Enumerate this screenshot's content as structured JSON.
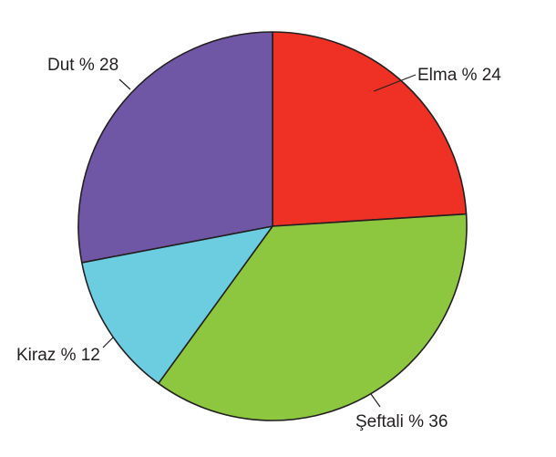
{
  "chart_data": {
    "type": "pie",
    "title": "",
    "slices": [
      {
        "name": "Elma",
        "label": "Elma % 24",
        "value": 24,
        "color": "#ee3124"
      },
      {
        "name": "Şeftali",
        "label": "Şeftali % 36",
        "value": 36,
        "color": "#8dc63f"
      },
      {
        "name": "Kiraz",
        "label": "Kiraz % 12",
        "value": 12,
        "color": "#6dcde0"
      },
      {
        "name": "Dut",
        "label": "Dut % 28",
        "value": 28,
        "color": "#6f57a5"
      }
    ],
    "start_angle_deg": 0,
    "direction": "clockwise",
    "legend": "none"
  }
}
